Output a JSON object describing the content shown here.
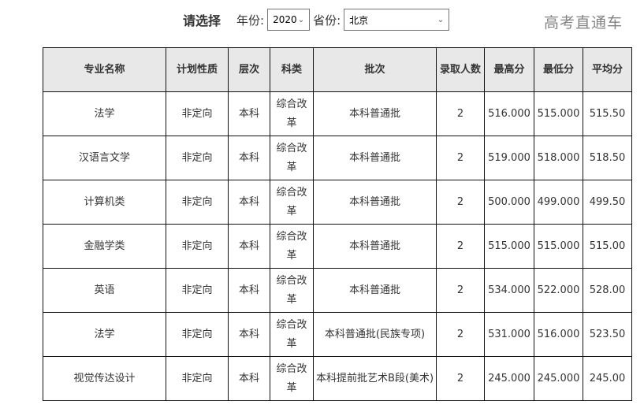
{
  "filter": {
    "title": "请选择",
    "year_label": "年份:",
    "year_value": "2020",
    "province_label": "省份:",
    "province_value": "北京",
    "chevron": "chevron-down-icon"
  },
  "table": {
    "headers": [
      "专业名称",
      "计划性质",
      "层次",
      "科类",
      "批次",
      "录取人数",
      "最高分",
      "最低分",
      "平均分"
    ],
    "rows": [
      [
        "法学",
        "非定向",
        "本科",
        "综合改革",
        "本科普通批",
        "2",
        "516.000",
        "515.000",
        "515.50"
      ],
      [
        "汉语言文学",
        "非定向",
        "本科",
        "综合改革",
        "本科普通批",
        "2",
        "519.000",
        "518.000",
        "518.50"
      ],
      [
        "计算机类",
        "非定向",
        "本科",
        "综合改革",
        "本科普通批",
        "2",
        "500.000",
        "499.000",
        "499.50"
      ],
      [
        "金融学类",
        "非定向",
        "本科",
        "综合改革",
        "本科普通批",
        "2",
        "515.000",
        "515.000",
        "515.00"
      ],
      [
        "英语",
        "非定向",
        "本科",
        "综合改革",
        "本科普通批",
        "2",
        "534.000",
        "522.000",
        "528.00"
      ],
      [
        "法学",
        "非定向",
        "本科",
        "综合改革",
        "本科普通批(民族专项)",
        "2",
        "531.000",
        "516.000",
        "523.50"
      ],
      [
        "视觉传达设计",
        "非定向",
        "本科",
        "综合改革",
        "本科提前批艺术B段(美术)",
        "2",
        "245.000",
        "245.000",
        "245.00"
      ]
    ]
  },
  "watermark": "高考直通车"
}
